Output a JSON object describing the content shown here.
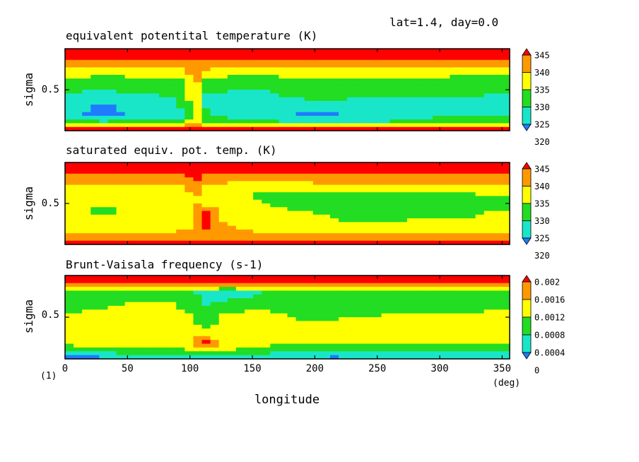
{
  "header": {
    "text": "lat=1.4, day=0.0"
  },
  "colors": {
    "c0": "#1f7bff",
    "c1": "#19e6c8",
    "c2": "#22dd22",
    "c3": "#ffff00",
    "c4": "#ff9900",
    "c5": "#ff0000",
    "frame": "#000000"
  },
  "x_axis": {
    "label": "longitude",
    "unit": "(deg)",
    "figure_note": "(1)",
    "range": [
      0,
      356
    ],
    "ticks": [
      0,
      50,
      100,
      150,
      200,
      250,
      300,
      350
    ],
    "tick_labels": [
      "0",
      "50",
      "100",
      "150",
      "200",
      "250",
      "300",
      "350"
    ]
  },
  "panels": [
    {
      "title": "equivalent potentital temperature (K)",
      "ylabel": "sigma",
      "ytick_label": "0.5",
      "colorbar_labels": [
        "345",
        "340",
        "335",
        "330",
        "325",
        "320"
      ]
    },
    {
      "title": "saturated equiv. pot. temp. (K)",
      "ylabel": "sigma",
      "ytick_label": "0.5",
      "colorbar_labels": [
        "345",
        "340",
        "335",
        "330",
        "325",
        "320"
      ]
    },
    {
      "title": "Brunt-Vaisala frequency (s-1)",
      "ylabel": "sigma",
      "ytick_label": "0.5",
      "colorbar_labels": [
        "0.002",
        "0.0016",
        "0.0012",
        "0.0008",
        "0.0004",
        "0"
      ]
    }
  ],
  "chart_data": [
    {
      "type": "heatmap",
      "title": "equivalent potentital temperature (K)",
      "xlabel": "longitude",
      "ylabel": "sigma",
      "xlim": [
        0,
        356
      ],
      "ylim": [
        1.0,
        0.0
      ],
      "levels": [
        320,
        325,
        330,
        335,
        340,
        345
      ],
      "x": [
        0,
        30,
        60,
        90,
        100,
        105,
        110,
        130,
        160,
        200,
        240,
        280,
        320,
        356
      ],
      "y": [
        0.05,
        0.12,
        0.2,
        0.3,
        0.4,
        0.5,
        0.6,
        0.7,
        0.8,
        0.9,
        0.97
      ],
      "z": [
        [
          348,
          348,
          348,
          348,
          348,
          348,
          348,
          348,
          348,
          348,
          348,
          348,
          348,
          348
        ],
        [
          345,
          345,
          345,
          345,
          345,
          345,
          345,
          345,
          345,
          345,
          345,
          345,
          345,
          345
        ],
        [
          341,
          341,
          341,
          341,
          343,
          344,
          342,
          341,
          341,
          341,
          341,
          341,
          341,
          341
        ],
        [
          337,
          337,
          337,
          337,
          341,
          343,
          339,
          337,
          336,
          338,
          337,
          337,
          337,
          337
        ],
        [
          334,
          331,
          333,
          333,
          339,
          342,
          335,
          331,
          332,
          334,
          332,
          334,
          331,
          332
        ],
        [
          331,
          330,
          331,
          331,
          337,
          340,
          331,
          330,
          330,
          332,
          330,
          330,
          331,
          331
        ],
        [
          329,
          328,
          329,
          330,
          336,
          339,
          329,
          330,
          329,
          331,
          330,
          330,
          330,
          329
        ],
        [
          327,
          324,
          327,
          329,
          334,
          338,
          330,
          328,
          328,
          326,
          329,
          329,
          329,
          328
        ],
        [
          327,
          323,
          327,
          326,
          333,
          337,
          331,
          328,
          327,
          324,
          326,
          329,
          329,
          328
        ],
        [
          333,
          331,
          332,
          332,
          336,
          338,
          333,
          332,
          331,
          330,
          330,
          331,
          332,
          333
        ],
        [
          346,
          346,
          346,
          346,
          346,
          346,
          346,
          346,
          346,
          346,
          346,
          346,
          346,
          346
        ]
      ]
    },
    {
      "type": "heatmap",
      "title": "saturated equiv. pot. temp. (K)",
      "xlabel": "longitude",
      "ylabel": "sigma",
      "xlim": [
        0,
        356
      ],
      "ylim": [
        1.0,
        0.0
      ],
      "levels": [
        320,
        325,
        330,
        335,
        340,
        345
      ],
      "x": [
        0,
        30,
        60,
        90,
        100,
        105,
        110,
        130,
        160,
        200,
        240,
        280,
        320,
        356
      ],
      "y": [
        0.05,
        0.12,
        0.2,
        0.3,
        0.4,
        0.5,
        0.6,
        0.7,
        0.8,
        0.9,
        0.97
      ],
      "z": [
        [
          348,
          348,
          348,
          348,
          348,
          348,
          348,
          348,
          348,
          348,
          348,
          348,
          348,
          348
        ],
        [
          346,
          346,
          346,
          346,
          346,
          346,
          346,
          346,
          346,
          346,
          346,
          346,
          346,
          346
        ],
        [
          343,
          342,
          342,
          342,
          345,
          346,
          343,
          342,
          342,
          342,
          342,
          342,
          342,
          342
        ],
        [
          339,
          338,
          339,
          339,
          342,
          344,
          340,
          338,
          337,
          338,
          338,
          339,
          338,
          339
        ],
        [
          336,
          337,
          337,
          336,
          339,
          341,
          337,
          336,
          334,
          333,
          333,
          333,
          334,
          336
        ],
        [
          335,
          336,
          336,
          336,
          338,
          340,
          338,
          337,
          335,
          333,
          331,
          332,
          332,
          333
        ],
        [
          336,
          334,
          336,
          337,
          338,
          343,
          347,
          338,
          336,
          335,
          332,
          333,
          334,
          336
        ],
        [
          336,
          337,
          337,
          336,
          338,
          342,
          347,
          338,
          337,
          336,
          334,
          335,
          335,
          336
        ],
        [
          338,
          338,
          339,
          339,
          340,
          343,
          346,
          341,
          338,
          338,
          337,
          337,
          338,
          338
        ],
        [
          341,
          341,
          341,
          341,
          342,
          343,
          344,
          342,
          341,
          341,
          341,
          341,
          341,
          341
        ],
        [
          346,
          346,
          346,
          346,
          346,
          346,
          346,
          346,
          346,
          346,
          346,
          346,
          346,
          346
        ]
      ]
    },
    {
      "type": "heatmap",
      "title": "Brunt-Vaisala frequency (s-1)",
      "xlabel": "longitude",
      "ylabel": "sigma",
      "xlim": [
        0,
        356
      ],
      "ylim": [
        1.0,
        0.0
      ],
      "levels": [
        0,
        0.0004,
        0.0008,
        0.0012,
        0.0016,
        0.002
      ],
      "x": [
        0,
        30,
        60,
        90,
        100,
        105,
        110,
        130,
        160,
        200,
        240,
        280,
        320,
        356
      ],
      "y": [
        0.05,
        0.12,
        0.2,
        0.3,
        0.4,
        0.5,
        0.6,
        0.7,
        0.8,
        0.9,
        0.97
      ],
      "z": [
        [
          0.0024,
          0.0024,
          0.0024,
          0.0024,
          0.0024,
          0.0024,
          0.0024,
          0.0024,
          0.0024,
          0.0024,
          0.0024,
          0.0024,
          0.0024,
          0.0024
        ],
        [
          0.0018,
          0.0017,
          0.0016,
          0.0017,
          0.0018,
          0.0018,
          0.0017,
          0.0018,
          0.0018,
          0.0017,
          0.0017,
          0.0018,
          0.0018,
          0.0018
        ],
        [
          0.0008,
          0.0009,
          0.001,
          0.0009,
          0.001,
          0.0007,
          0.0008,
          0.0005,
          0.0008,
          0.0009,
          0.0009,
          0.0008,
          0.0008,
          0.0009
        ],
        [
          0.001,
          0.0009,
          0.0012,
          0.0012,
          0.0011,
          0.001,
          0.0007,
          0.0008,
          0.001,
          0.0009,
          0.001,
          0.0012,
          0.001,
          0.001
        ],
        [
          0.0011,
          0.0012,
          0.0014,
          0.0012,
          0.0011,
          0.001,
          0.0008,
          0.0011,
          0.0012,
          0.001,
          0.0011,
          0.0011,
          0.0011,
          0.0012
        ],
        [
          0.0013,
          0.0014,
          0.0014,
          0.0013,
          0.0013,
          0.0011,
          0.001,
          0.0013,
          0.0013,
          0.0011,
          0.0012,
          0.0013,
          0.0013,
          0.0014
        ],
        [
          0.0014,
          0.0014,
          0.0015,
          0.0015,
          0.0014,
          0.0013,
          0.0011,
          0.0013,
          0.0014,
          0.0013,
          0.0014,
          0.0014,
          0.0014,
          0.0014
        ],
        [
          0.0014,
          0.0015,
          0.0016,
          0.0015,
          0.0014,
          0.0016,
          0.0013,
          0.0014,
          0.0014,
          0.0012,
          0.0014,
          0.0014,
          0.0014,
          0.0014
        ],
        [
          0.0013,
          0.0014,
          0.0014,
          0.0014,
          0.0014,
          0.0017,
          0.0022,
          0.0014,
          0.0013,
          0.0012,
          0.0013,
          0.0013,
          0.0013,
          0.0013
        ],
        [
          0.001,
          0.0011,
          0.0011,
          0.0011,
          0.0012,
          0.0013,
          0.0014,
          0.0012,
          0.0011,
          0.0009,
          0.0009,
          0.001,
          0.001,
          0.0009
        ],
        [
          0.0003,
          0.0004,
          0.0005,
          0.0005,
          0.0006,
          0.0006,
          0.0007,
          0.0006,
          0.0005,
          0.0004,
          0.0004,
          0.0005,
          0.0005,
          0.0004
        ]
      ]
    }
  ]
}
